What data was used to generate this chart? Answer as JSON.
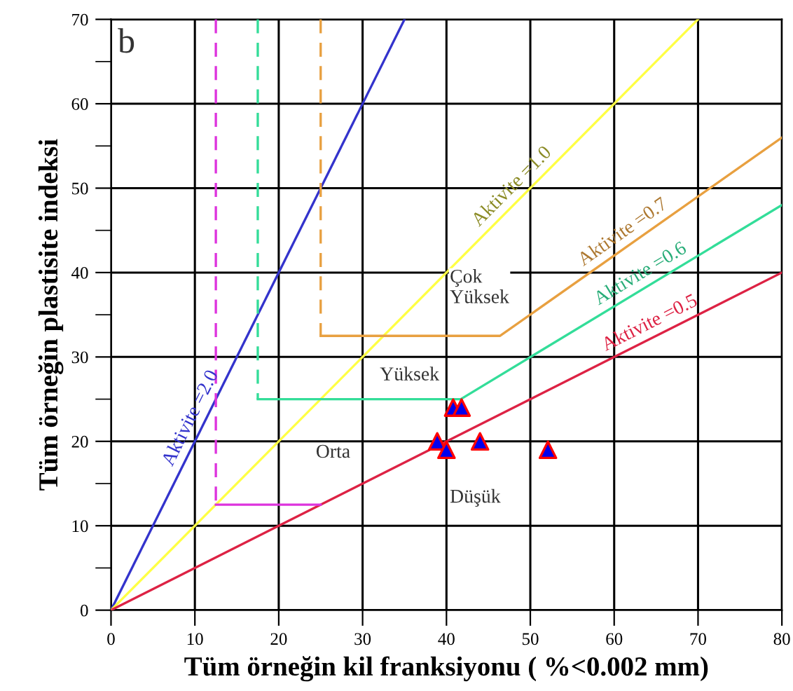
{
  "chart_data": {
    "type": "line",
    "xlabel": "Tüm örneğin kil franksiyonu ( %<0.002 mm)",
    "ylabel": "Tüm örneğin plastisite indeksi",
    "xlim": [
      0,
      80
    ],
    "ylim": [
      0,
      70
    ],
    "xticks": [
      0,
      10,
      20,
      30,
      40,
      50,
      60,
      70,
      80
    ],
    "yticks": [
      0,
      {
        "value": 5,
        "label": null
      },
      10,
      {
        "value": 15,
        "label": null
      },
      20,
      {
        "value": 25,
        "label": null
      },
      30,
      {
        "value": 35,
        "label": null
      },
      40,
      {
        "value": 45,
        "label": null
      },
      50,
      {
        "value": 55,
        "label": null
      },
      60,
      {
        "value": 65,
        "label": null
      },
      70
    ],
    "grid": true,
    "series": [
      {
        "color": "#3333cc",
        "x": [
          0,
          35
        ],
        "values": [
          0,
          70
        ]
      },
      {
        "color": "#ffff44",
        "x": [
          0,
          70
        ],
        "values": [
          0,
          70
        ]
      },
      {
        "color": "#dd2244",
        "x": [
          0,
          80
        ],
        "values": [
          0,
          40
        ]
      },
      {
        "color": "#e8a040",
        "line_style": "dashed",
        "x": [
          25,
          25
        ],
        "values": [
          70,
          32.5
        ]
      },
      {
        "color": "#e8a040",
        "x": [
          25,
          46.4,
          80
        ],
        "values": [
          32.5,
          32.5,
          56
        ]
      },
      {
        "color": "#33dd99",
        "line_style": "dashed",
        "x": [
          17.5,
          17.5
        ],
        "values": [
          70,
          25
        ]
      },
      {
        "color": "#33dd99",
        "x": [
          17.5,
          41.7,
          80
        ],
        "values": [
          25,
          25,
          48
        ]
      },
      {
        "color": "#dd33dd",
        "line_style": "dashed",
        "x": [
          12.5,
          12.5
        ],
        "values": [
          70,
          12.5
        ]
      },
      {
        "color": "#dd33dd",
        "x": [
          12.5,
          25
        ],
        "values": [
          12.5,
          12.5
        ]
      },
      {
        "type": "scatter",
        "color": "#0000ee",
        "marker": "triangle",
        "x": [
          40.8,
          41.8,
          38.9,
          40,
          44,
          52.1
        ],
        "values": [
          24,
          24,
          20,
          19,
          20,
          19
        ]
      }
    ],
    "annotations": [
      "b",
      {
        "text": "Aktivite =2.0",
        "x": 11,
        "y": 22
      },
      {
        "text": "Aktivite =1.0",
        "x": 49,
        "y": 49
      },
      {
        "text": "Aktivite =0.7",
        "x": 62,
        "y": 43.4
      },
      {
        "text": "Aktivite =0.6",
        "x": 64,
        "y": 38.4
      },
      {
        "text": "Aktivite =0.5",
        "x": 65,
        "y": 32.5
      },
      "Çok\nYüksek",
      "Yüksek",
      "Orta",
      "Düşük"
    ]
  }
}
